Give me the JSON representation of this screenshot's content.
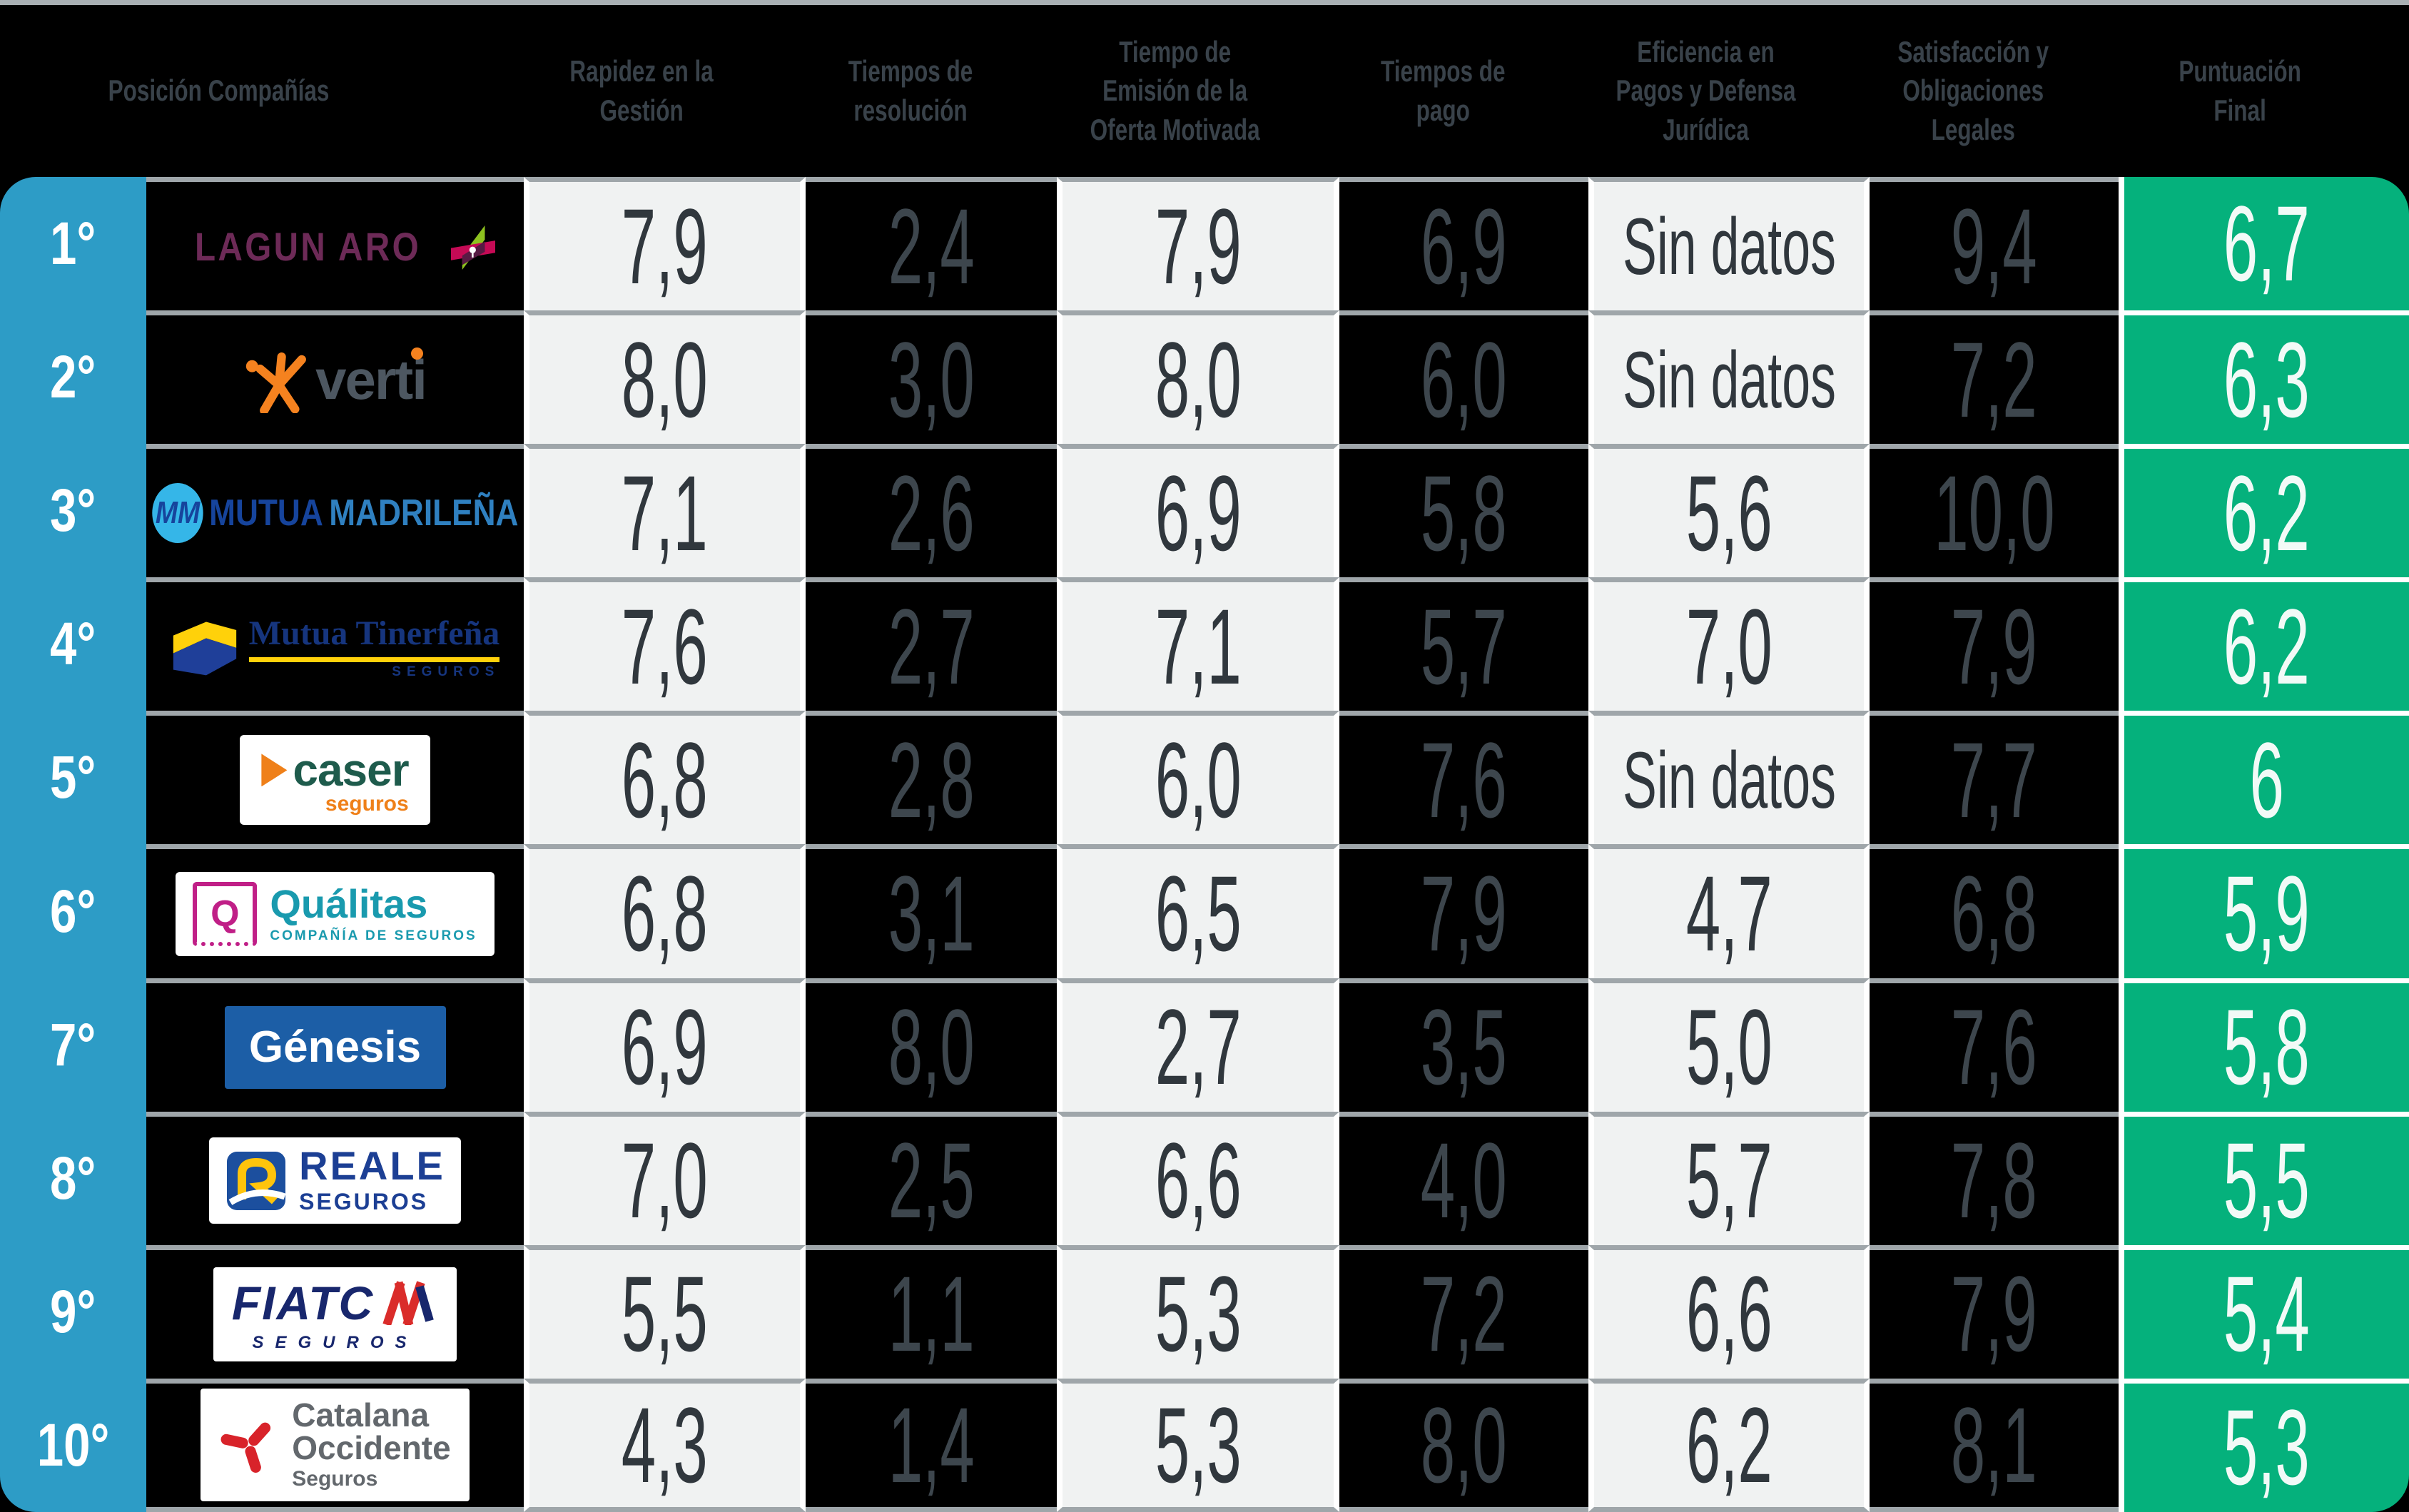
{
  "colors": {
    "background": "#000000",
    "position_column_blue": "#2d9cc6",
    "final_column_green": "#05b17c",
    "light_cell": "#f0f2f2",
    "row_separator_gray": "#9fa6aa",
    "column_separator_white": "#ffffff",
    "header_text": "#39424a",
    "value_text_on_light": "#30373d",
    "value_text_on_dark": "#3d464d",
    "value_text_on_green": "#f2faf7"
  },
  "header": {
    "columns": [
      "Posición Compañías",
      "Rapidez en la\nGestión",
      "Tiempos de\nresolución",
      "Tiempo de\nEmisión de la\nOferta Motivada",
      "Tiempos de\npago",
      "Eficiencia en\nPagos y Defensa\nJurídica",
      "Satisfacción y\nObligaciones\nLegales",
      "Puntuación\nFinal"
    ]
  },
  "rows": [
    {
      "position": "1°",
      "company": "Lagun Aro",
      "scores": [
        "7,9",
        "2,4",
        "7,9",
        "6,9",
        "Sin datos",
        "9,4"
      ],
      "final": "6,7",
      "logo": {
        "type": "lagun-aro",
        "text": "LAGUN ARO"
      }
    },
    {
      "position": "2°",
      "company": "Verti",
      "scores": [
        "8,0",
        "3,0",
        "8,0",
        "6,0",
        "Sin datos",
        "7,2"
      ],
      "final": "6,3",
      "logo": {
        "type": "verti",
        "text": "verti"
      }
    },
    {
      "position": "3°",
      "company": "Mutua Madrileña",
      "scores": [
        "7,1",
        "2,6",
        "6,9",
        "5,8",
        "5,6",
        "10,0"
      ],
      "final": "6,2",
      "logo": {
        "type": "mutua-madrilena",
        "mark": "MM",
        "bold": "MUTUA",
        "light": "MADRILEÑA"
      }
    },
    {
      "position": "4°",
      "company": "Mutua Tinerfeña",
      "scores": [
        "7,6",
        "2,7",
        "7,1",
        "5,7",
        "7,0",
        "7,9"
      ],
      "final": "6,2",
      "logo": {
        "type": "mutua-tinerfena",
        "main": "Mutua Tinerfeña",
        "sub": "SEGUROS"
      }
    },
    {
      "position": "5°",
      "company": "Caser Seguros",
      "scores": [
        "6,8",
        "2,8",
        "6,0",
        "7,6",
        "Sin datos",
        "7,7"
      ],
      "final": "6",
      "logo": {
        "type": "caser",
        "main": "caser",
        "sub": "seguros"
      }
    },
    {
      "position": "6°",
      "company": "Quálitas",
      "scores": [
        "6,8",
        "3,1",
        "6,5",
        "7,9",
        "4,7",
        "6,8"
      ],
      "final": "5,9",
      "logo": {
        "type": "qualitas",
        "mark": "Q",
        "main": "Quálitas",
        "sub": "COMPAÑÍA DE SEGUROS"
      }
    },
    {
      "position": "7°",
      "company": "Génesis",
      "scores": [
        "6,9",
        "8,0",
        "2,7",
        "3,5",
        "5,0",
        "7,6"
      ],
      "final": "5,8",
      "logo": {
        "type": "genesis",
        "main": "Génesis"
      }
    },
    {
      "position": "8°",
      "company": "Reale Seguros",
      "scores": [
        "7,0",
        "2,5",
        "6,6",
        "4,0",
        "5,7",
        "7,8"
      ],
      "final": "5,5",
      "logo": {
        "type": "reale",
        "main": "REALE",
        "sub": "SEGUROS"
      }
    },
    {
      "position": "9°",
      "company": "FIATC Seguros",
      "scores": [
        "5,5",
        "1,1",
        "5,3",
        "7,2",
        "6,6",
        "7,9"
      ],
      "final": "5,4",
      "logo": {
        "type": "fiatc",
        "main": "FIATC",
        "sub": "SEGUROS"
      }
    },
    {
      "position": "10°",
      "company": "Catalana Occidente",
      "scores": [
        "4,3",
        "1,4",
        "5,3",
        "8,0",
        "6,2",
        "8,1"
      ],
      "final": "5,3",
      "logo": {
        "type": "catalana",
        "line1": "Catalana",
        "line2": "Occidente",
        "sub": "Seguros"
      }
    }
  ],
  "chart_data": {
    "type": "table",
    "title": "Ranking de compañías de seguros",
    "columns": [
      "Posición",
      "Compañía",
      "Rapidez en la Gestión",
      "Tiempos de resolución",
      "Tiempo de Emisión de la Oferta Motivada",
      "Tiempos de pago",
      "Eficiencia en Pagos y Defensa Jurídica",
      "Satisfacción y Obligaciones Legales",
      "Puntuación Final"
    ],
    "rows": [
      [
        "1°",
        "Lagun Aro",
        7.9,
        2.4,
        7.9,
        6.9,
        "Sin datos",
        9.4,
        6.7
      ],
      [
        "2°",
        "Verti",
        8.0,
        3.0,
        8.0,
        6.0,
        "Sin datos",
        7.2,
        6.3
      ],
      [
        "3°",
        "Mutua Madrileña",
        7.1,
        2.6,
        6.9,
        5.8,
        5.6,
        10.0,
        6.2
      ],
      [
        "4°",
        "Mutua Tinerfeña",
        7.6,
        2.7,
        7.1,
        5.7,
        7.0,
        7.9,
        6.2
      ],
      [
        "5°",
        "Caser Seguros",
        6.8,
        2.8,
        6.0,
        7.6,
        "Sin datos",
        7.7,
        6.0
      ],
      [
        "6°",
        "Quálitas",
        6.8,
        3.1,
        6.5,
        7.9,
        4.7,
        6.8,
        5.9
      ],
      [
        "7°",
        "Génesis",
        6.9,
        8.0,
        2.7,
        3.5,
        5.0,
        7.6,
        5.8
      ],
      [
        "8°",
        "Reale Seguros",
        7.0,
        2.5,
        6.6,
        4.0,
        5.7,
        7.8,
        5.5
      ],
      [
        "9°",
        "FIATC Seguros",
        5.5,
        1.1,
        5.3,
        7.2,
        6.6,
        7.9,
        5.4
      ],
      [
        "10°",
        "Catalana Occidente",
        4.3,
        1.4,
        5.3,
        8.0,
        6.2,
        8.1,
        5.3
      ]
    ]
  }
}
